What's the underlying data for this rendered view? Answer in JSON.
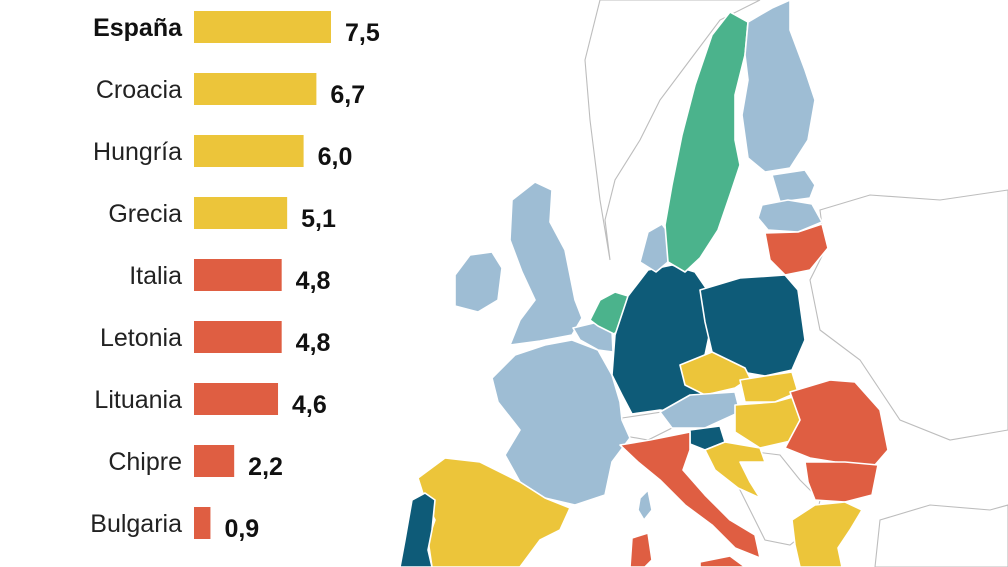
{
  "chart_data": {
    "type": "bar",
    "orientation": "horizontal",
    "categories": [
      "España",
      "Croacia",
      "Hungría",
      "Grecia",
      "Italia",
      "Letonia",
      "Lituania",
      "Chipre",
      "Bulgaria"
    ],
    "values": [
      7.5,
      6.7,
      6.0,
      5.1,
      4.8,
      4.8,
      4.6,
      2.2,
      0.9
    ],
    "value_labels": [
      "7,5",
      "6,7",
      "6,0",
      "5,1",
      "4,8",
      "4,8",
      "4,6",
      "2,2",
      "0,9"
    ],
    "highlight": "España",
    "bar_colors": [
      "#ecc53a",
      "#ecc53a",
      "#ecc53a",
      "#ecc53a",
      "#df5e42",
      "#df5e42",
      "#df5e42",
      "#df5e42",
      "#df5e42"
    ],
    "xlim": [
      0,
      7.5
    ],
    "title": "",
    "xlabel": "",
    "ylabel": "",
    "grid": false,
    "legend": "none"
  },
  "map": {
    "colors": {
      "yellow": "#ecc53a",
      "red": "#df5e42",
      "dark_blue": "#0e5b78",
      "light_blue": "#9ebdd4",
      "green": "#4bb38c",
      "non_eu": "#ffffff",
      "border": "#bdbdbd"
    },
    "regions": [
      {
        "id": "spain",
        "color": "yellow"
      },
      {
        "id": "portugal",
        "color": "dark_blue"
      },
      {
        "id": "france",
        "color": "light_blue"
      },
      {
        "id": "ireland",
        "color": "light_blue"
      },
      {
        "id": "united-kingdom",
        "color": "light_blue"
      },
      {
        "id": "netherlands",
        "color": "green"
      },
      {
        "id": "belgium",
        "color": "light_blue"
      },
      {
        "id": "germany",
        "color": "dark_blue"
      },
      {
        "id": "poland",
        "color": "dark_blue"
      },
      {
        "id": "czechia",
        "color": "yellow"
      },
      {
        "id": "slovakia",
        "color": "yellow"
      },
      {
        "id": "austria",
        "color": "light_blue"
      },
      {
        "id": "hungary",
        "color": "yellow"
      },
      {
        "id": "slovenia",
        "color": "dark_blue"
      },
      {
        "id": "croatia",
        "color": "yellow"
      },
      {
        "id": "italy",
        "color": "red"
      },
      {
        "id": "romania",
        "color": "red"
      },
      {
        "id": "bulgaria",
        "color": "red"
      },
      {
        "id": "greece",
        "color": "yellow"
      },
      {
        "id": "lithuania",
        "color": "red"
      },
      {
        "id": "latvia",
        "color": "light_blue"
      },
      {
        "id": "estonia",
        "color": "light_blue"
      },
      {
        "id": "finland",
        "color": "light_blue"
      },
      {
        "id": "sweden",
        "color": "green"
      },
      {
        "id": "denmark",
        "color": "light_blue"
      },
      {
        "id": "corsica",
        "color": "light_blue"
      },
      {
        "id": "sardinia",
        "color": "red"
      },
      {
        "id": "sicily",
        "color": "red"
      }
    ]
  }
}
